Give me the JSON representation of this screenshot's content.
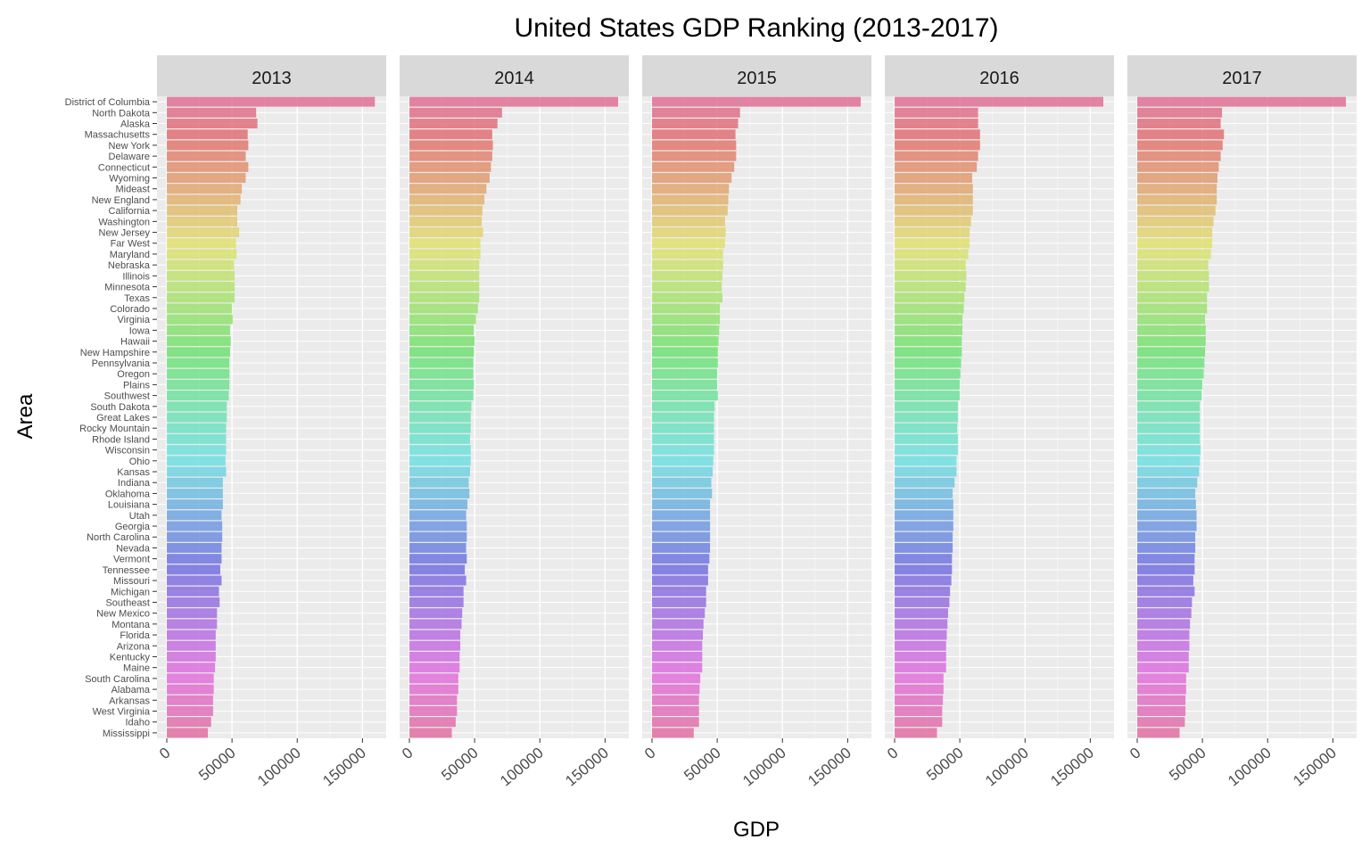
{
  "chart_data": {
    "type": "bar",
    "orientation": "horizontal",
    "title": "United States GDP Ranking (2013-2017)",
    "xlabel": "GDP",
    "ylabel": "Area",
    "xlim": [
      0,
      160000
    ],
    "x_ticks": [
      0,
      50000,
      100000,
      150000
    ],
    "x_tick_labels": [
      "0",
      "50000",
      "100000",
      "150000"
    ],
    "grid": true,
    "legend": "none",
    "panels": [
      "2013",
      "2014",
      "2015",
      "2016",
      "2017"
    ],
    "categories": [
      "District of Columbia",
      "North Dakota",
      "Alaska",
      "Massachusetts",
      "New York",
      "Delaware",
      "Connecticut",
      "Wyoming",
      "Mideast",
      "New England",
      "California",
      "Washington",
      "New Jersey",
      "Far West",
      "Maryland",
      "Nebraska",
      "Illinois",
      "Minnesota",
      "Texas",
      "Colorado",
      "Virginia",
      "Iowa",
      "Hawaii",
      "New Hampshire",
      "Pennsylvania",
      "Oregon",
      "Plains",
      "Southwest",
      "South Dakota",
      "Great Lakes",
      "Rocky Mountain",
      "Rhode Island",
      "Wisconsin",
      "Ohio",
      "Kansas",
      "Indiana",
      "Oklahoma",
      "Louisiana",
      "Utah",
      "Georgia",
      "North Carolina",
      "Nevada",
      "Vermont",
      "Tennessee",
      "Missouri",
      "Michigan",
      "Southeast",
      "New Mexico",
      "Montana",
      "Florida",
      "Arizona",
      "Kentucky",
      "Maine",
      "South Carolina",
      "Alabama",
      "Arkansas",
      "West Virginia",
      "Idaho",
      "Mississippi"
    ],
    "series": [
      {
        "name": "2013",
        "values": [
          159500,
          68500,
          69500,
          62000,
          62500,
          60500,
          62500,
          60500,
          57500,
          56500,
          54000,
          54000,
          55500,
          53000,
          53500,
          51500,
          52000,
          52000,
          52000,
          50000,
          50500,
          48500,
          49000,
          48500,
          48000,
          48000,
          48000,
          47500,
          46000,
          46000,
          45500,
          45500,
          45500,
          45000,
          45500,
          43000,
          43000,
          43000,
          42000,
          42500,
          42500,
          42000,
          42000,
          41000,
          42000,
          40000,
          40500,
          38500,
          38500,
          37500,
          37500,
          37500,
          37000,
          36000,
          36000,
          35500,
          35500,
          34000,
          31500
        ]
      },
      {
        "name": "2014",
        "values": [
          160000,
          71000,
          67500,
          63500,
          64000,
          63500,
          62500,
          61500,
          59000,
          57500,
          56000,
          55500,
          56500,
          54500,
          54500,
          53500,
          53500,
          53500,
          53500,
          52500,
          51000,
          49500,
          50000,
          49500,
          49000,
          49000,
          49500,
          49000,
          47500,
          47000,
          47000,
          46500,
          47000,
          47000,
          46500,
          45500,
          46000,
          44500,
          43500,
          44000,
          44000,
          43500,
          44000,
          42500,
          43500,
          41500,
          41500,
          40500,
          40000,
          39000,
          39000,
          38500,
          38500,
          37500,
          37500,
          36500,
          36500,
          35500,
          32500
        ]
      },
      {
        "name": "2015",
        "values": [
          160000,
          67500,
          66000,
          64000,
          64500,
          64500,
          63000,
          61000,
          59000,
          58500,
          58000,
          56000,
          56500,
          56000,
          54500,
          54500,
          54000,
          53500,
          54000,
          52000,
          52000,
          51500,
          51000,
          50500,
          50500,
          50000,
          50000,
          50500,
          48000,
          47500,
          47500,
          47500,
          47500,
          47000,
          46500,
          45500,
          46000,
          44500,
          44500,
          44500,
          44500,
          44500,
          44000,
          43000,
          43000,
          41500,
          41500,
          40500,
          39500,
          39000,
          38500,
          38500,
          38500,
          37000,
          36500,
          36000,
          36000,
          36000,
          32000
        ]
      },
      {
        "name": "2016",
        "values": [
          160000,
          64000,
          64000,
          65500,
          65500,
          64000,
          63000,
          59500,
          60000,
          60000,
          60000,
          58500,
          57500,
          57500,
          56500,
          54500,
          55000,
          54500,
          53500,
          53000,
          52000,
          52000,
          51500,
          51500,
          51000,
          50500,
          50000,
          50000,
          48500,
          48500,
          48000,
          48500,
          48500,
          47500,
          47500,
          46000,
          44500,
          45000,
          45000,
          45000,
          44500,
          44500,
          44000,
          44000,
          43500,
          42500,
          42000,
          41000,
          40500,
          40000,
          39500,
          39500,
          39500,
          37500,
          37500,
          37000,
          36500,
          36500,
          32500
        ]
      },
      {
        "name": "2017",
        "values": [
          160000,
          65000,
          64000,
          66500,
          65500,
          64000,
          62500,
          61500,
          61000,
          61000,
          60000,
          58500,
          57500,
          57500,
          56500,
          54500,
          55000,
          55000,
          53500,
          53500,
          52000,
          52500,
          52500,
          52000,
          51500,
          51000,
          50000,
          49500,
          48000,
          48000,
          48000,
          48000,
          48500,
          48000,
          47500,
          46000,
          44500,
          45000,
          45500,
          45500,
          44500,
          44500,
          44000,
          44000,
          43000,
          44000,
          42000,
          41500,
          40500,
          40000,
          40000,
          39500,
          39500,
          37500,
          37500,
          37000,
          37000,
          36500,
          32500
        ]
      }
    ]
  }
}
